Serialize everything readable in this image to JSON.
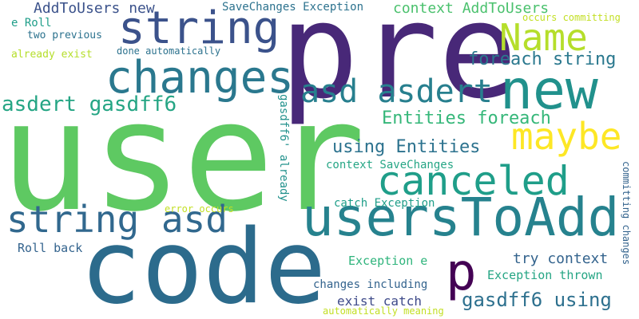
{
  "colors": {
    "background": "#ffffff",
    "palette": [
      "#440154",
      "#3b528b",
      "#21918c",
      "#5ec962",
      "#fde725"
    ]
  },
  "words": {
    "user": "user",
    "pre": "pre",
    "code": "code",
    "usersToAdd": "usersToAdd",
    "new": "new",
    "changes": "changes",
    "string": "string",
    "name": "Name",
    "maybe": "maybe",
    "canceled": "canceled",
    "string_asd": "string asd",
    "asd_asdert": "asd asdert",
    "p": "p",
    "gasdff6_using": "gasdff6 using",
    "asdert_gasdff6": "asdert gasdff6",
    "entities_foreach": "Entities foreach",
    "using_entities": "using Entities",
    "foreach_string": "foreach string",
    "context_addtousers": "context AddToUsers",
    "addtousers_new": "AddToUsers new",
    "try_context": "try context",
    "exist_catch": "exist catch",
    "savechanges_exception": "SaveChanges Exception",
    "occurs_committing": "occurs committing",
    "e_roll": "e Roll",
    "two_previous": "two previous",
    "already_exist": "already exist",
    "done_automatically": "done automatically",
    "context_savechanges": "context SaveChanges",
    "catch_exception": "catch Exception",
    "error_occurs": "error occurs",
    "roll_back": "Roll back",
    "exception_e": "Exception e",
    "exception_thrown": "Exception thrown",
    "changes_including": "changes including",
    "automatically_meaning": "automatically meaning",
    "gasdff6_already": "gasdff6' already",
    "committing_changes": "committing changes"
  }
}
